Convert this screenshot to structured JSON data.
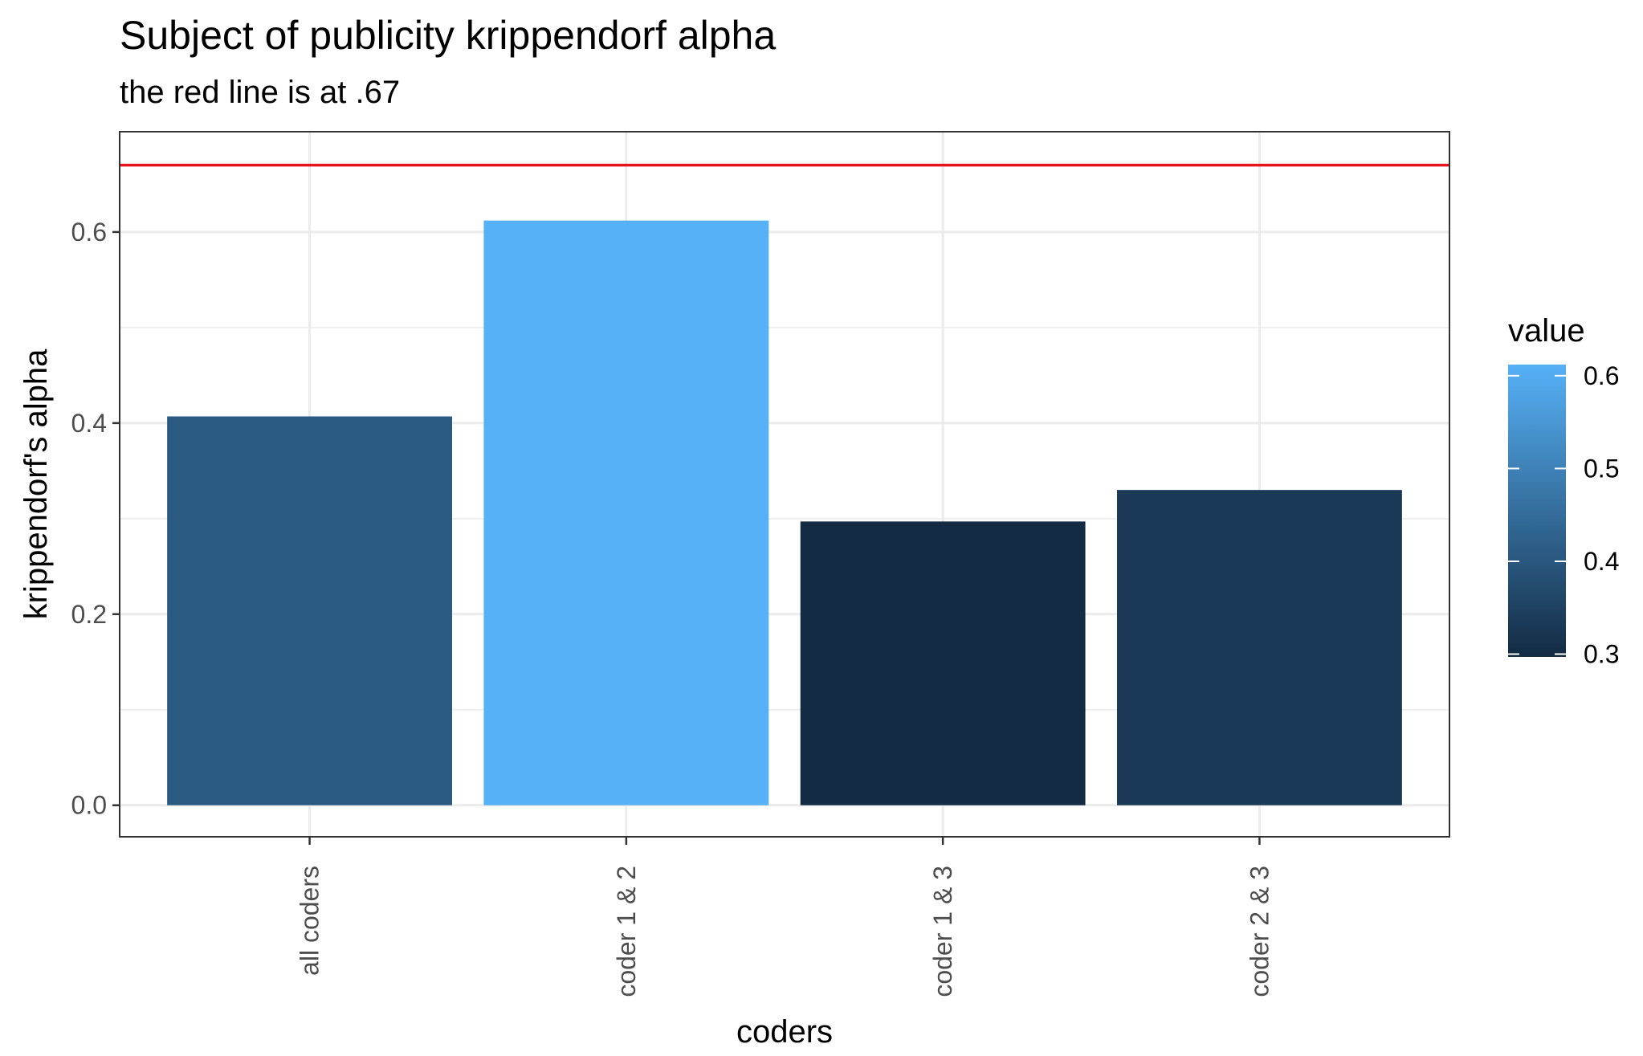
{
  "chart_data": {
    "type": "bar",
    "title": "Subject of publicity krippendorf alpha",
    "subtitle": "the red line is at .67",
    "xlabel": "coders",
    "ylabel": "krippendorf's alpha",
    "categories": [
      "all coders",
      "coder 1 & 2",
      "coder 1 & 3",
      "coder 2 & 3"
    ],
    "values": [
      0.407,
      0.612,
      0.297,
      0.33
    ],
    "ylim": [
      -0.033,
      0.705
    ],
    "y_ticks": [
      {
        "value": 0.0,
        "label": "0.0"
      },
      {
        "value": 0.2,
        "label": "0.2"
      },
      {
        "value": 0.4,
        "label": "0.4"
      },
      {
        "value": 0.6,
        "label": "0.6"
      }
    ],
    "y_minor_ticks": [
      0.1,
      0.3,
      0.5
    ],
    "reference_line": {
      "value": 0.67,
      "color": "#e8141b"
    },
    "grid": true,
    "legend": {
      "title": "value",
      "position": "right",
      "type": "colorbar",
      "range": [
        0.297,
        0.612
      ],
      "low_color": "#132b43",
      "high_color": "#56b1f7",
      "ticks": [
        {
          "value": 0.3,
          "label": "0.3"
        },
        {
          "value": 0.4,
          "label": "0.4"
        },
        {
          "value": 0.5,
          "label": "0.5"
        },
        {
          "value": 0.6,
          "label": "0.6"
        }
      ]
    }
  }
}
